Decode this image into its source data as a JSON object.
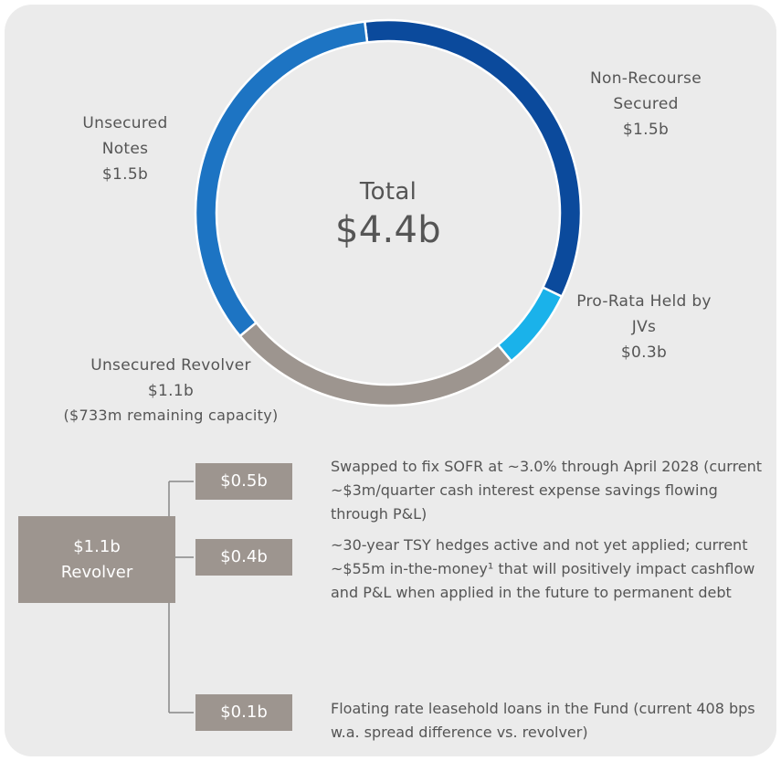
{
  "chart_data": {
    "type": "donut",
    "categories": [
      "Non-Recourse Secured",
      "Pro-Rata Held by JVs",
      "Unsecured Revolver",
      "Unsecured Notes"
    ],
    "values": [
      1.5,
      0.3,
      1.1,
      1.5
    ],
    "value_labels": [
      "$1.5b",
      "$0.3b",
      "$1.1b",
      "$1.5b"
    ],
    "colors": [
      "#0b4a9c",
      "#1ab2ea",
      "#9d958f",
      "#1d74c3"
    ],
    "annotation": "($733m remaining capacity)",
    "center_title": "Total",
    "center_value": "$4.4b"
  },
  "breakdown": {
    "root": {
      "amount": "$1.1b",
      "label": "Revolver"
    },
    "items": [
      {
        "amount": "$0.5b",
        "text": "Swapped to fix SOFR at ~3.0% through April 2028 (current ~$3m/quarter cash interest expense savings flowing through P&L)"
      },
      {
        "amount": "$0.4b",
        "text": "~30-year TSY hedges active and not yet applied; current ~$55m in-the-money¹ that will positively impact cashflow and P&L when applied in the future to permanent debt"
      },
      {
        "amount": "$0.1b",
        "text": "Floating rate leasehold loans in the Fund (current 408 bps w.a. spread difference vs. revolver)"
      }
    ]
  }
}
